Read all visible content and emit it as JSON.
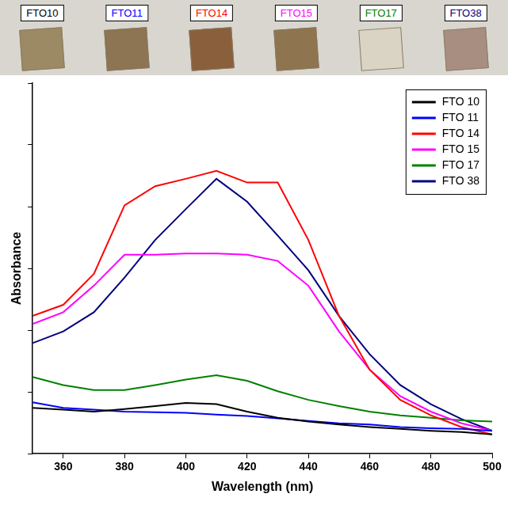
{
  "chart_data": {
    "type": "line",
    "annotations": [
      "FTO10",
      "FTO11",
      "FTO14",
      "FTO15",
      "FTO17",
      "FTO38"
    ],
    "x_label": "Wavelength (nm)",
    "y_label": "Absorbance",
    "x": [
      350,
      360,
      370,
      380,
      390,
      400,
      410,
      420,
      430,
      440,
      450,
      460,
      470,
      480,
      490,
      500
    ],
    "series": [
      {
        "name": "FTO 10",
        "color": "#000000",
        "values": [
          0.74,
          0.71,
          0.68,
          0.72,
          0.77,
          0.82,
          0.8,
          0.68,
          0.58,
          0.52,
          0.47,
          0.43,
          0.4,
          0.37,
          0.35,
          0.31
        ]
      },
      {
        "name": "FTO 11",
        "color": "#0000ff",
        "values": [
          0.83,
          0.74,
          0.71,
          0.68,
          0.67,
          0.66,
          0.63,
          0.61,
          0.57,
          0.53,
          0.49,
          0.47,
          0.43,
          0.41,
          0.4,
          0.37
        ]
      },
      {
        "name": "FTO 14",
        "color": "#ff0000",
        "values": [
          2.23,
          2.41,
          2.91,
          4.02,
          4.33,
          4.45,
          4.58,
          4.39,
          4.39,
          3.46,
          2.23,
          1.36,
          0.87,
          0.62,
          0.43,
          0.31
        ]
      },
      {
        "name": "FTO 15",
        "color": "#ff00ff",
        "values": [
          2.1,
          2.29,
          2.72,
          3.22,
          3.22,
          3.24,
          3.24,
          3.22,
          3.12,
          2.72,
          1.98,
          1.36,
          0.93,
          0.68,
          0.49,
          0.37
        ]
      },
      {
        "name": "FTO 17",
        "color": "#008000",
        "values": [
          1.24,
          1.11,
          1.03,
          1.03,
          1.11,
          1.2,
          1.27,
          1.18,
          1.01,
          0.87,
          0.77,
          0.68,
          0.62,
          0.58,
          0.54,
          0.52
        ]
      },
      {
        "name": "FTO 38",
        "color": "#000080",
        "values": [
          1.79,
          1.98,
          2.29,
          2.85,
          3.46,
          3.96,
          4.45,
          4.08,
          3.53,
          2.97,
          2.23,
          1.61,
          1.11,
          0.8,
          0.56,
          0.37
        ]
      }
    ],
    "xlim": [
      350,
      500
    ],
    "xticks": [
      360,
      380,
      400,
      420,
      440,
      460,
      480,
      500
    ],
    "ylim": [
      0,
      6
    ],
    "yticks": [
      0,
      1,
      2,
      3,
      4,
      5,
      6
    ],
    "tick_labels": "x",
    "grid": false,
    "legend": "upper right"
  }
}
